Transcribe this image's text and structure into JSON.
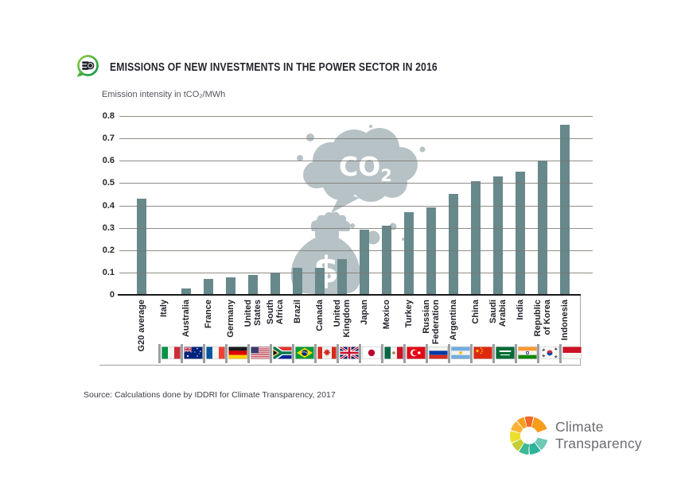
{
  "header": {
    "title": "EMISSIONS OF NEW INVESTMENTS IN THE POWER SECTOR IN 2016",
    "icon": "money-bubble-icon"
  },
  "chart_data": {
    "type": "bar",
    "axis_title": "Emission intensity in tCO₂/MWh",
    "ylim": [
      0,
      0.8
    ],
    "ytick_step": 0.1,
    "ytick_labels": [
      "0.8",
      "0.7",
      "0.6",
      "0.5",
      "0.4",
      "0.3",
      "0.2",
      "0.1",
      "0"
    ],
    "grid": true,
    "bar_color": "#67898b",
    "categories": [
      "G20 average",
      "Italy",
      "Australia",
      "France",
      "Germany",
      "United\nStates",
      "South\nAfrica",
      "Brazil",
      "Canada",
      "United\nKingdom",
      "Japan",
      "Mexico",
      "Turkey",
      "Russian\nFederation",
      "Argentina",
      "China",
      "Saudi\nArabia",
      "India",
      "Republic\nof Korea",
      "Indonesia"
    ],
    "values": [
      0.43,
      0,
      0.03,
      0.07,
      0.08,
      0.09,
      0.1,
      0.12,
      0.12,
      0.16,
      0.29,
      0.31,
      0.37,
      0.39,
      0.45,
      0.51,
      0.53,
      0.55,
      0.6,
      0.76
    ],
    "flags": [
      null,
      "italy",
      "australia",
      "france",
      "germany",
      "united-states",
      "south-africa",
      "brazil",
      "canada",
      "united-kingdom",
      "japan",
      "mexico",
      "turkey",
      "russia",
      "argentina",
      "china",
      "saudi-arabia",
      "india",
      "south-korea",
      "indonesia"
    ]
  },
  "decoration": {
    "cloud_text": "CO",
    "cloud_text_sub": "2",
    "bag_text": "$",
    "color": "#b7c2c6"
  },
  "source": "Source: Calculations done by IDDRI for Climate Transparency, 2017",
  "logo": {
    "line1": "Climate",
    "line2": "Transparency"
  },
  "colors": {
    "bar": "#67898b",
    "grid": "#85817b",
    "axis": "#1a1a1a",
    "decoration": "#b7c2c6",
    "title_text": "#25252e",
    "muted_text": "#54555c",
    "logo_text": "#6b6c70",
    "icon_green_light": "#9ad145",
    "icon_green_dark": "#008f44"
  }
}
